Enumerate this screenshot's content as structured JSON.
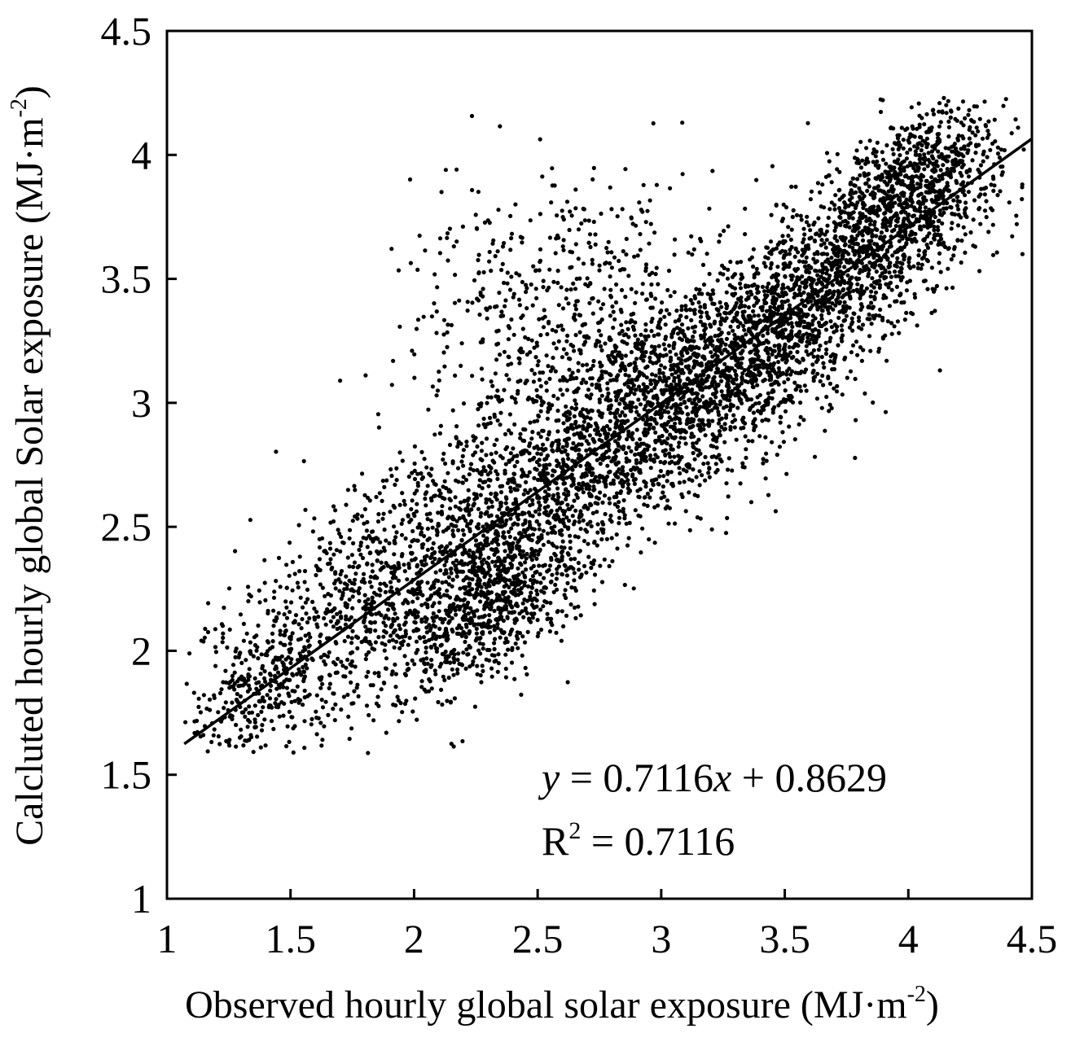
{
  "chart_data": {
    "type": "scatter",
    "title": "",
    "xlabel": "Observed hourly global solar exposure (MJ·m",
    "xlabel_sup": "-2",
    "xlabel_end": ")",
    "ylabel": "Calcluted hourly global Solar exposure (MJ·m",
    "ylabel_sup": "-2",
    "ylabel_end": ")",
    "xlim": [
      1,
      4.5
    ],
    "ylim": [
      1,
      4.5
    ],
    "x_ticks": [
      1,
      1.5,
      2,
      2.5,
      3,
      3.5,
      4,
      4.5
    ],
    "y_ticks": [
      1,
      1.5,
      2,
      2.5,
      3,
      3.5,
      4,
      4.5
    ],
    "x_tick_labels": [
      "1",
      "1.5",
      "2",
      "2.5",
      "3",
      "3.5",
      "4",
      "4.5"
    ],
    "y_tick_labels": [
      "1",
      "1.5",
      "2",
      "2.5",
      "3",
      "3.5",
      "4",
      "4.5"
    ],
    "grid": false,
    "legend": "none",
    "marker_color": "#000000",
    "trendline": {
      "slope": 0.7116,
      "intercept": 0.8629,
      "x_range": [
        1.07,
        4.5
      ]
    },
    "annotations": {
      "equation_y": "y",
      "equation_rest": " = 0.7116",
      "equation_x": "x",
      "equation_tail": " + 0.8629",
      "r2_label": "R",
      "r2_sup": "2",
      "r2_value": " = 0.7116"
    },
    "point_clusters": [
      {
        "cx": 2.85,
        "cy": 2.9,
        "sx": 0.45,
        "sy": 0.35,
        "rho": 0.75,
        "n": 2200
      },
      {
        "cx": 3.55,
        "cy": 3.35,
        "sx": 0.35,
        "sy": 0.3,
        "rho": 0.8,
        "n": 1600
      },
      {
        "cx": 4.0,
        "cy": 3.85,
        "sx": 0.18,
        "sy": 0.18,
        "rho": 0.5,
        "n": 900
      },
      {
        "cx": 2.3,
        "cy": 2.2,
        "sx": 0.2,
        "sy": 0.2,
        "rho": 0.6,
        "n": 800
      },
      {
        "cx": 1.85,
        "cy": 2.25,
        "sx": 0.35,
        "sy": 0.35,
        "rho": 0.7,
        "n": 900
      },
      {
        "cx": 2.6,
        "cy": 3.4,
        "sx": 0.3,
        "sy": 0.25,
        "rho": 0.1,
        "n": 500
      },
      {
        "cx": 1.4,
        "cy": 1.9,
        "sx": 0.15,
        "sy": 0.15,
        "rho": 0.5,
        "n": 250
      }
    ]
  }
}
